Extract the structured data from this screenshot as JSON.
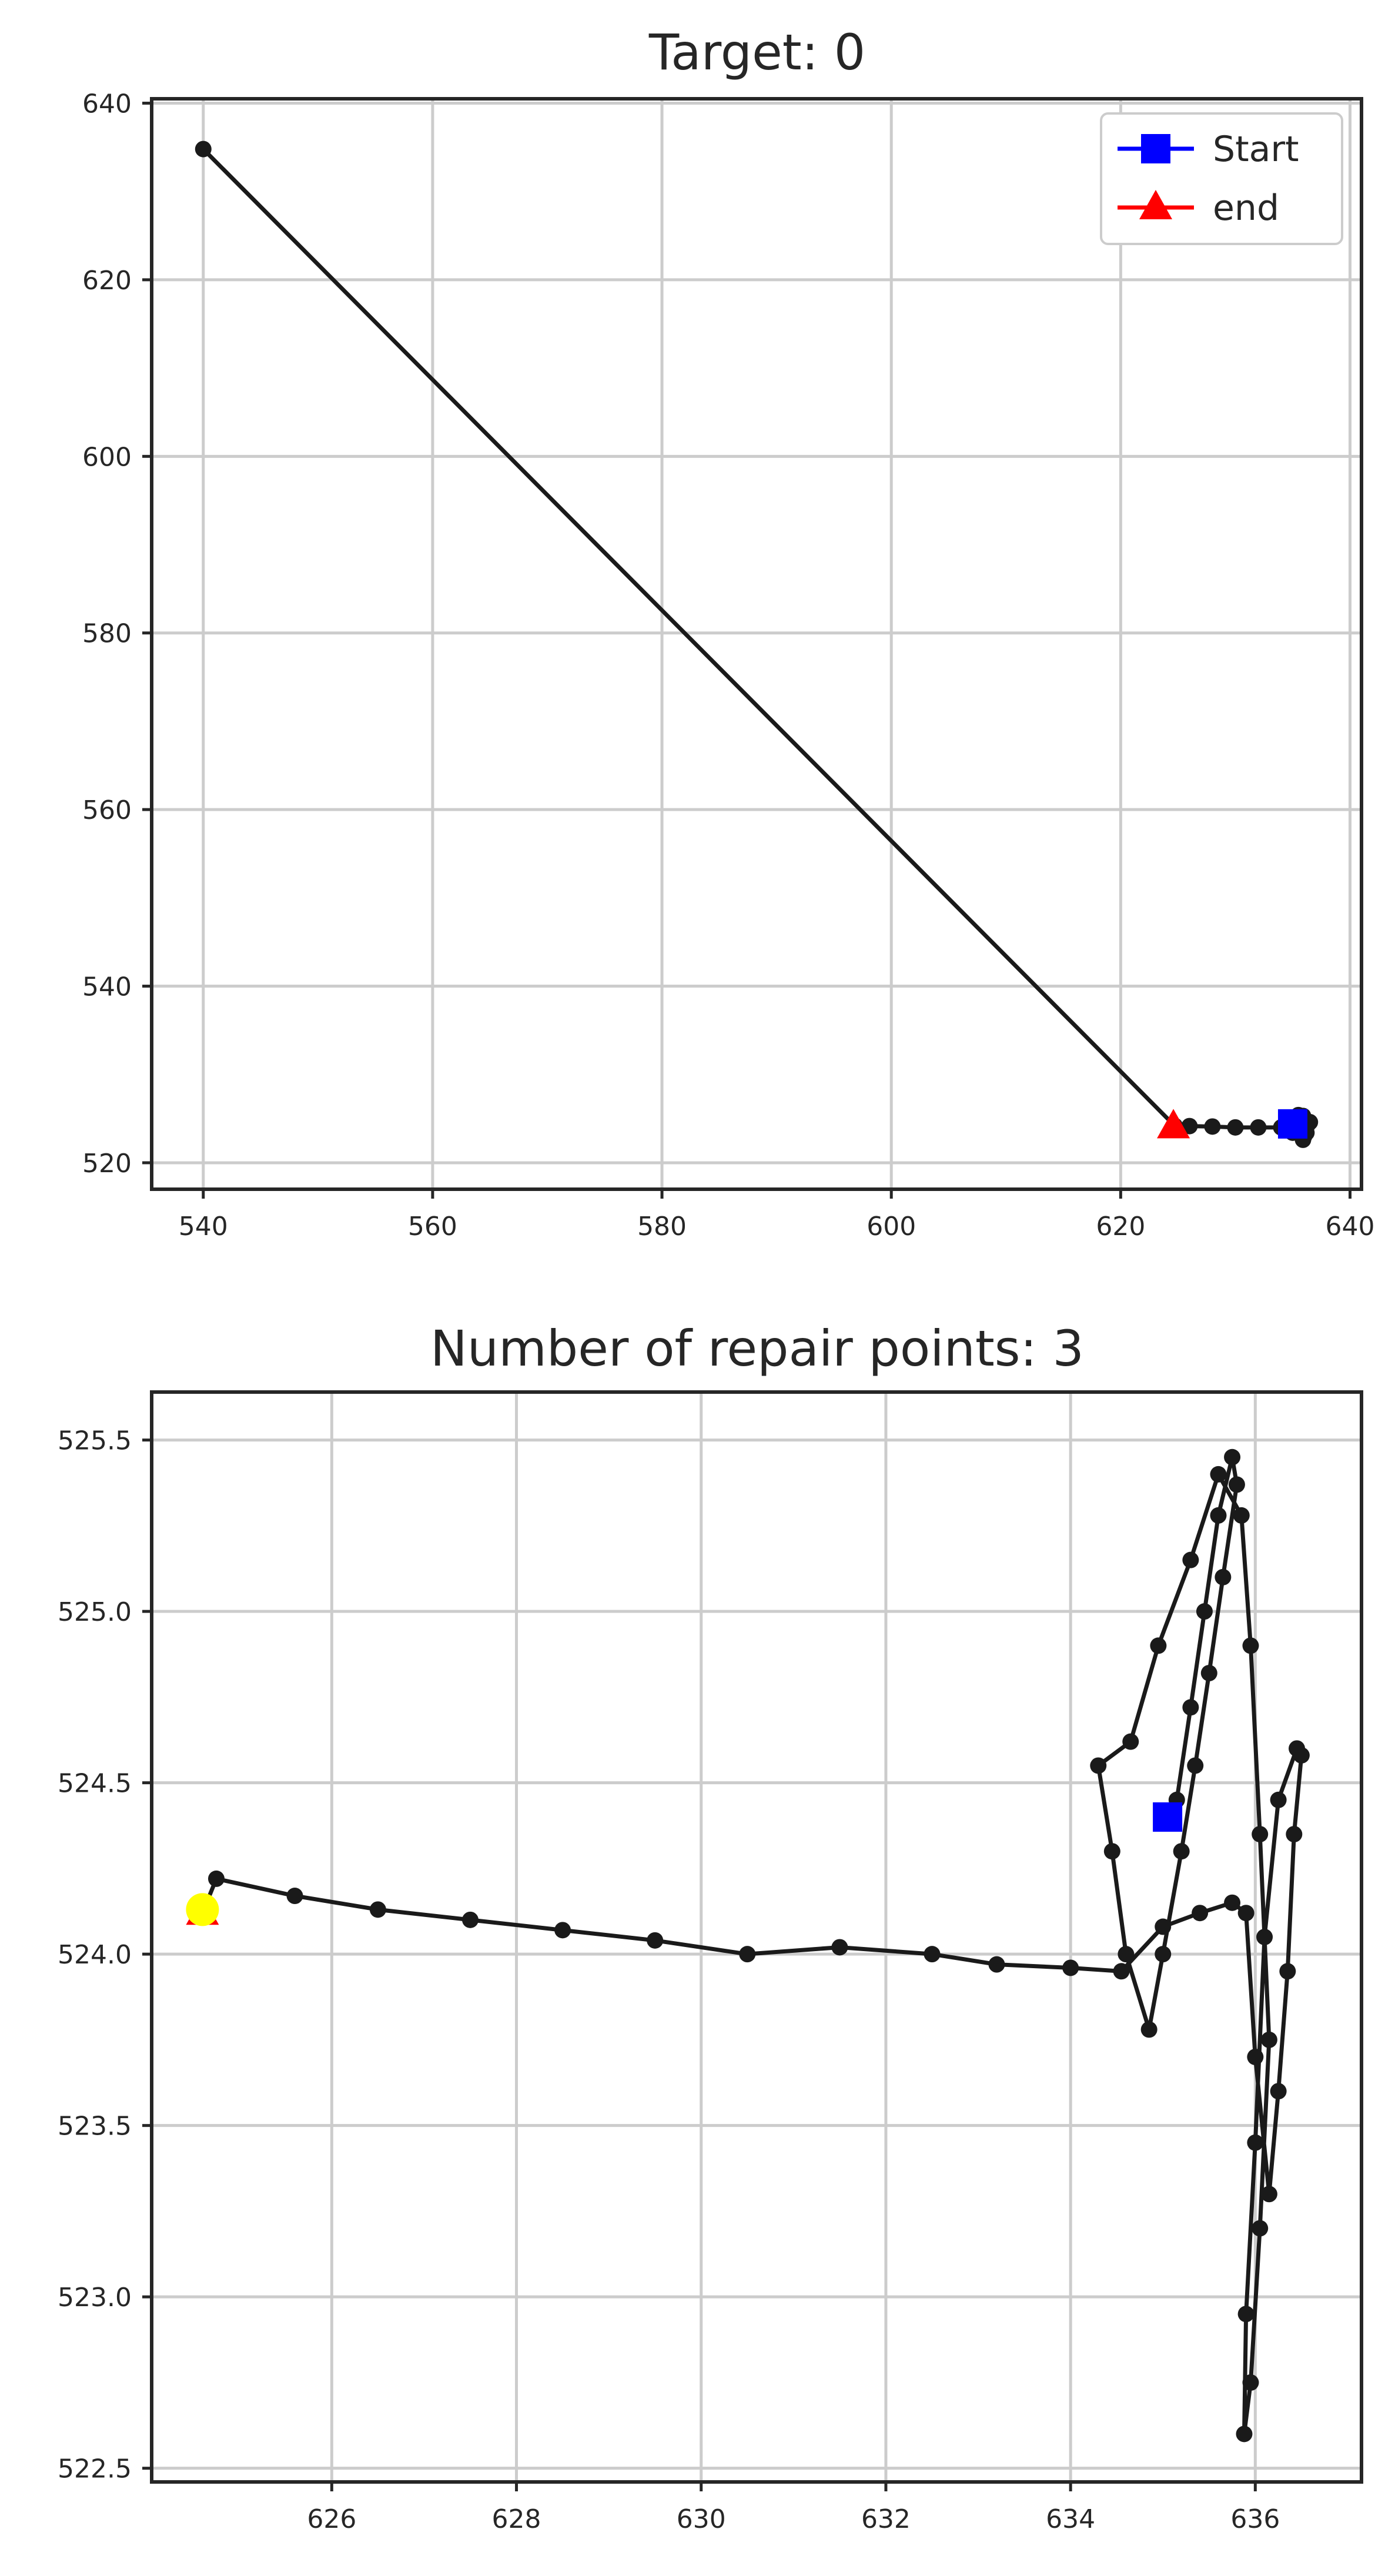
{
  "chart_data": [
    {
      "type": "line",
      "title": "Target: 0",
      "xlim": [
        535.5,
        641.0
      ],
      "ylim": [
        517.0,
        640.5
      ],
      "xticks": [
        540,
        560,
        580,
        600,
        620,
        640
      ],
      "yticks": [
        520,
        540,
        560,
        580,
        600,
        620,
        640
      ],
      "grid": true,
      "legend": {
        "placement": "top-right",
        "entries": [
          {
            "label": "Start",
            "color": "#0000ff",
            "marker": "square"
          },
          {
            "label": "end",
            "color": "#ff0000",
            "marker": "triangle"
          }
        ]
      },
      "series": [
        {
          "color": "#1a1a1a",
          "points": [
            [
              540.0,
              634.8
            ],
            [
              624.7,
              524.2
            ],
            [
              626.0,
              524.15
            ],
            [
              628.0,
              524.1
            ],
            [
              630.0,
              524.0
            ],
            [
              632.0,
              524.0
            ],
            [
              634.0,
              524.0
            ],
            [
              635.5,
              524.1
            ],
            [
              636.0,
              523.8
            ],
            [
              636.3,
              524.3
            ],
            [
              636.5,
              524.6
            ],
            [
              636.0,
              523.0
            ],
            [
              635.9,
              522.6
            ],
            [
              636.2,
              523.4
            ],
            [
              636.4,
              524.5
            ],
            [
              635.5,
              524.2
            ],
            [
              634.5,
              524.0
            ],
            [
              635.0,
              523.4
            ],
            [
              635.5,
              525.4
            ],
            [
              635.9,
              525.3
            ],
            [
              635.2,
              524.4
            ]
          ]
        }
      ],
      "markers": [
        {
          "kind": "start",
          "x": 635.0,
          "y": 524.4,
          "shape": "square",
          "color": "#0000ff"
        },
        {
          "kind": "end",
          "x": 624.6,
          "y": 524.1,
          "shape": "triangle",
          "color": "#ff0000"
        }
      ]
    },
    {
      "type": "line",
      "title": "Number of repair points: 3",
      "xlim": [
        624.05,
        637.15
      ],
      "ylim": [
        522.46,
        525.64
      ],
      "xticks": [
        626,
        628,
        630,
        632,
        634,
        636
      ],
      "yticks": [
        522.5,
        523.0,
        523.5,
        524.0,
        524.5,
        525.0,
        525.5
      ],
      "ytick_labels": [
        "522.5",
        "523.0",
        "523.5",
        "524.0",
        "524.5",
        "525.0",
        "525.5"
      ],
      "grid": true,
      "series": [
        {
          "color": "#1a1a1a",
          "points": [
            [
              635.15,
              524.45
            ],
            [
              635.3,
              524.72
            ],
            [
              635.45,
              525.0
            ],
            [
              635.6,
              525.28
            ],
            [
              635.75,
              525.45
            ],
            [
              635.8,
              525.37
            ],
            [
              635.65,
              525.1
            ],
            [
              635.5,
              524.82
            ],
            [
              635.35,
              524.55
            ],
            [
              635.2,
              524.3
            ],
            [
              635.0,
              524.0
            ],
            [
              634.85,
              523.78
            ],
            [
              634.6,
              524.0
            ],
            [
              634.45,
              524.3
            ],
            [
              634.3,
              524.55
            ],
            [
              634.65,
              524.62
            ],
            [
              634.95,
              524.9
            ],
            [
              635.3,
              525.15
            ],
            [
              635.6,
              525.4
            ],
            [
              635.85,
              525.28
            ],
            [
              635.95,
              524.9
            ],
            [
              636.05,
              524.35
            ],
            [
              636.15,
              523.75
            ],
            [
              636.05,
              523.2
            ],
            [
              635.95,
              522.75
            ],
            [
              635.88,
              522.6
            ],
            [
              635.9,
              522.95
            ],
            [
              636.0,
              523.45
            ],
            [
              636.1,
              524.05
            ],
            [
              636.25,
              524.45
            ],
            [
              636.45,
              524.6
            ],
            [
              636.5,
              524.58
            ],
            [
              636.42,
              524.35
            ],
            [
              636.35,
              523.95
            ],
            [
              636.25,
              523.6
            ],
            [
              636.15,
              523.3
            ],
            [
              636.0,
              523.7
            ],
            [
              635.9,
              524.12
            ],
            [
              635.75,
              524.15
            ],
            [
              635.4,
              524.12
            ],
            [
              635.0,
              524.08
            ],
            [
              634.55,
              523.95
            ],
            [
              634.0,
              523.96
            ],
            [
              633.2,
              523.97
            ],
            [
              632.5,
              524.0
            ],
            [
              631.5,
              524.02
            ],
            [
              630.5,
              524.0
            ],
            [
              629.5,
              524.04
            ],
            [
              628.5,
              524.07
            ],
            [
              627.5,
              524.1
            ],
            [
              626.5,
              524.13
            ],
            [
              625.6,
              524.17
            ],
            [
              624.75,
              524.22
            ],
            [
              624.6,
              524.12
            ]
          ]
        }
      ],
      "markers": [
        {
          "kind": "start",
          "x": 635.05,
          "y": 524.4,
          "shape": "square",
          "color": "#0000ff"
        },
        {
          "kind": "end",
          "x": 624.6,
          "y": 524.12,
          "shape": "triangle",
          "color": "#ff0000"
        },
        {
          "kind": "repair",
          "x": 624.6,
          "y": 524.13,
          "shape": "circle",
          "color": "#ffff00"
        }
      ]
    }
  ]
}
